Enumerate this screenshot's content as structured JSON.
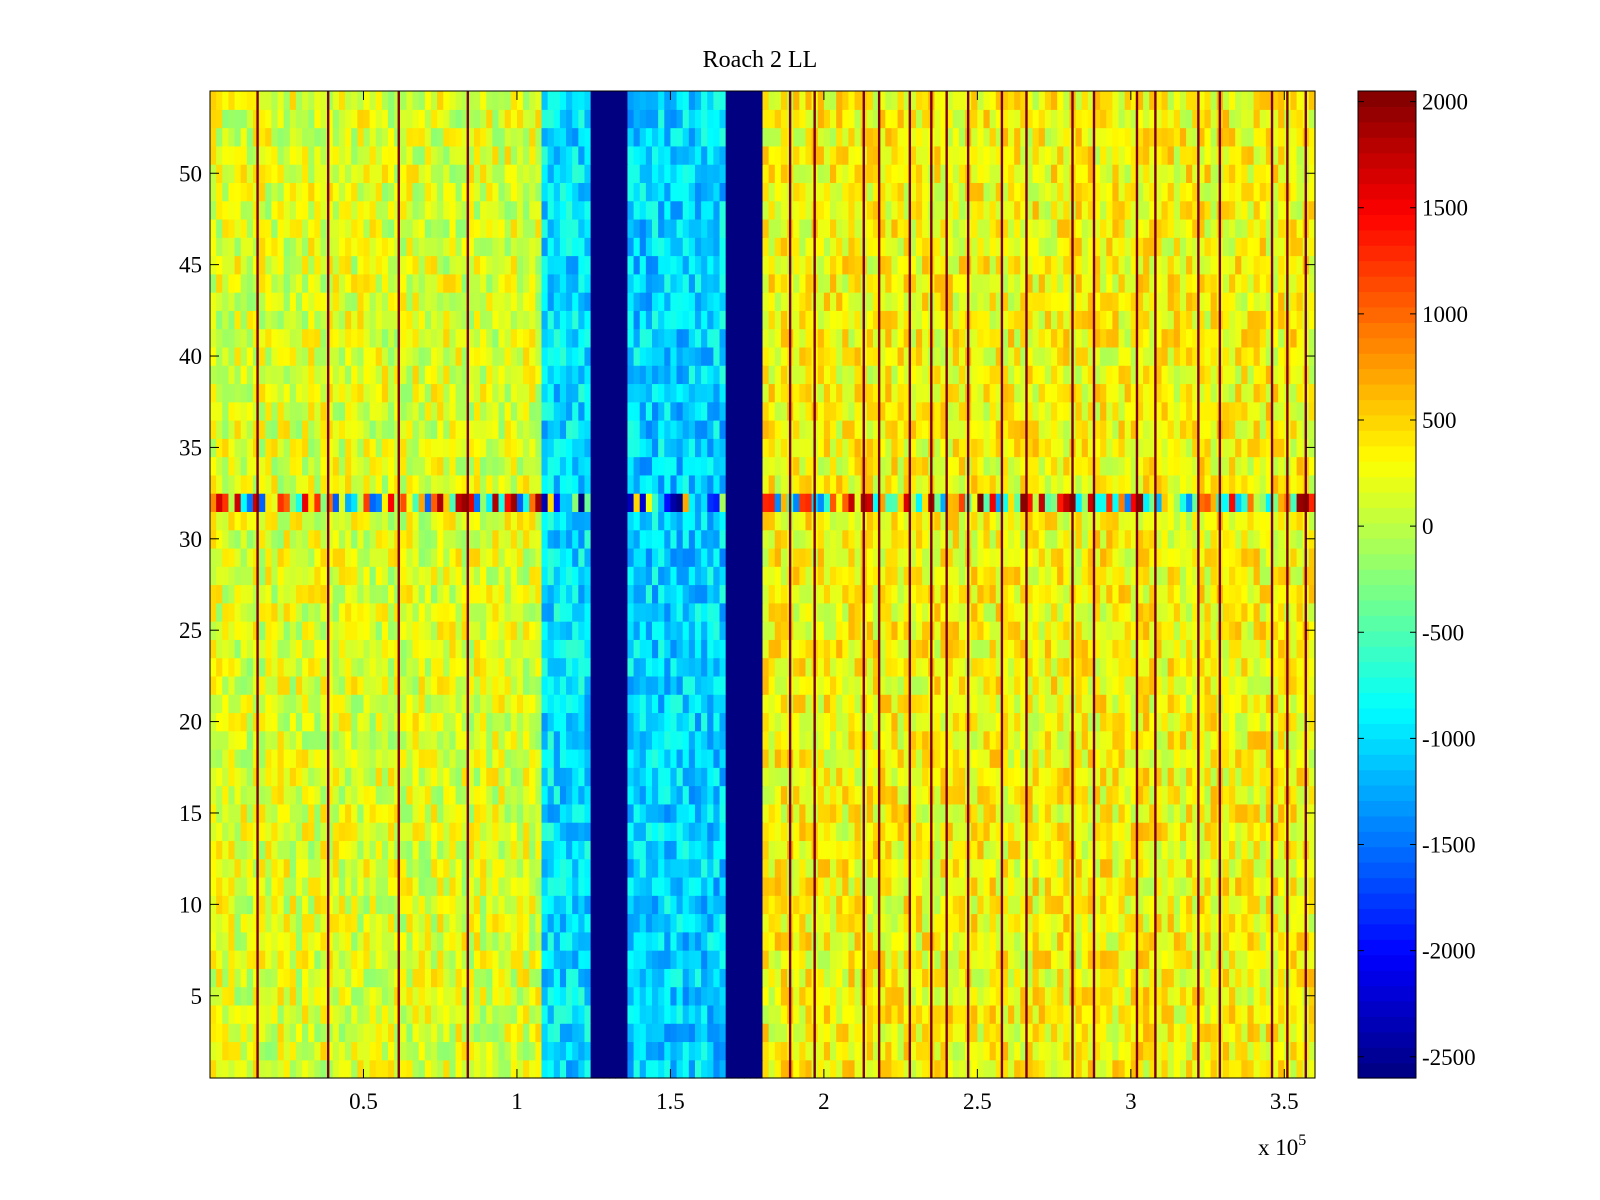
{
  "chart_data": {
    "type": "heatmap",
    "title": "Roach 2 LL",
    "xlabel": "",
    "ylabel": "",
    "x_multiplier_label": "x 10",
    "x_multiplier_exponent": "5",
    "x_range": [
      0,
      360000
    ],
    "y_range": [
      0.5,
      54.5
    ],
    "rows": 54,
    "x_ticks": [
      {
        "value": 50000,
        "label": "0.5"
      },
      {
        "value": 100000,
        "label": "1"
      },
      {
        "value": 150000,
        "label": "1.5"
      },
      {
        "value": 200000,
        "label": "2"
      },
      {
        "value": 250000,
        "label": "2.5"
      },
      {
        "value": 300000,
        "label": "3"
      },
      {
        "value": 350000,
        "label": "3.5"
      }
    ],
    "y_ticks": [
      {
        "value": 5,
        "label": "5"
      },
      {
        "value": 10,
        "label": "10"
      },
      {
        "value": 15,
        "label": "15"
      },
      {
        "value": 20,
        "label": "20"
      },
      {
        "value": 25,
        "label": "25"
      },
      {
        "value": 30,
        "label": "30"
      },
      {
        "value": 35,
        "label": "35"
      },
      {
        "value": 40,
        "label": "40"
      },
      {
        "value": 45,
        "label": "45"
      },
      {
        "value": 50,
        "label": "50"
      }
    ],
    "colorbar": {
      "colormap": "jet",
      "range": [
        -2600,
        2050
      ],
      "ticks": [
        {
          "value": 2000,
          "label": "2000"
        },
        {
          "value": 1500,
          "label": "1500"
        },
        {
          "value": 1000,
          "label": "1000"
        },
        {
          "value": 500,
          "label": "500"
        },
        {
          "value": 0,
          "label": "0"
        },
        {
          "value": -500,
          "label": "-500"
        },
        {
          "value": -1000,
          "label": "-1000"
        },
        {
          "value": -1500,
          "label": "-1500"
        },
        {
          "value": -2000,
          "label": "-2000"
        },
        {
          "value": -2500,
          "label": "-2500"
        }
      ]
    },
    "column_bands": [
      {
        "x_start": 0,
        "x_end": 108000,
        "mean": 150
      },
      {
        "x_start": 108000,
        "x_end": 124000,
        "mean": -1000
      },
      {
        "x_start": 124000,
        "x_end": 136000,
        "mean": -2600
      },
      {
        "x_start": 136000,
        "x_end": 169000,
        "mean": -1050
      },
      {
        "x_start": 169000,
        "x_end": 181000,
        "mean": -2600
      },
      {
        "x_start": 181000,
        "x_end": 360000,
        "mean": 300
      }
    ],
    "anomalous_row": {
      "y": 32,
      "description": "horizontal line of extreme values"
    },
    "vertical_lines_x": [
      15500,
      38500,
      61500,
      84000,
      189000,
      197000,
      213000,
      218000,
      228000,
      235000,
      240000,
      247000,
      258000,
      266000,
      281000,
      288000,
      302000,
      308000,
      322000,
      329000,
      346000,
      351000,
      357000
    ]
  }
}
